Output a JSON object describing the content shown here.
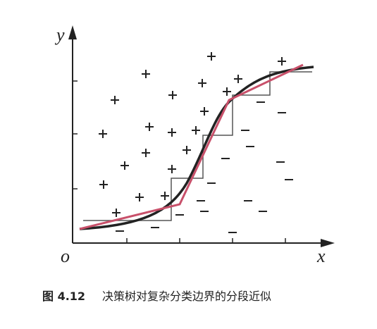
{
  "axes": {
    "x_label": "x",
    "y_label": "y",
    "origin_label": "o"
  },
  "caption": {
    "label": "图 4.12",
    "text": "决策树对复杂分类边界的分段近似"
  }
}
